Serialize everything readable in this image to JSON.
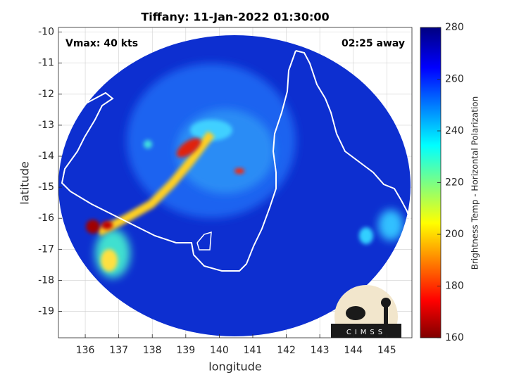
{
  "chart_data": {
    "type": "map",
    "title": "Tiffany: 11-Jan-2022 01:30:00",
    "annotations": [
      "Vmax: 40 kts",
      "02:25 away"
    ],
    "xlabel": "longitude",
    "ylabel": "latitude",
    "xlim": [
      135.2,
      145.75
    ],
    "ylim": [
      -19.85,
      -9.85
    ],
    "xticks": [
      136,
      137,
      138,
      139,
      140,
      141,
      142,
      143,
      144,
      145
    ],
    "yticks": [
      -10,
      -11,
      -12,
      -13,
      -14,
      -15,
      -16,
      -17,
      -18,
      -19
    ],
    "grid": true,
    "colorbar": {
      "label": "Brightness Temp - Horizontal Polarization",
      "lim": [
        160,
        280
      ],
      "ticks": [
        160,
        180,
        200,
        220,
        240,
        260,
        280
      ]
    },
    "logo_text": "CIMSS"
  }
}
